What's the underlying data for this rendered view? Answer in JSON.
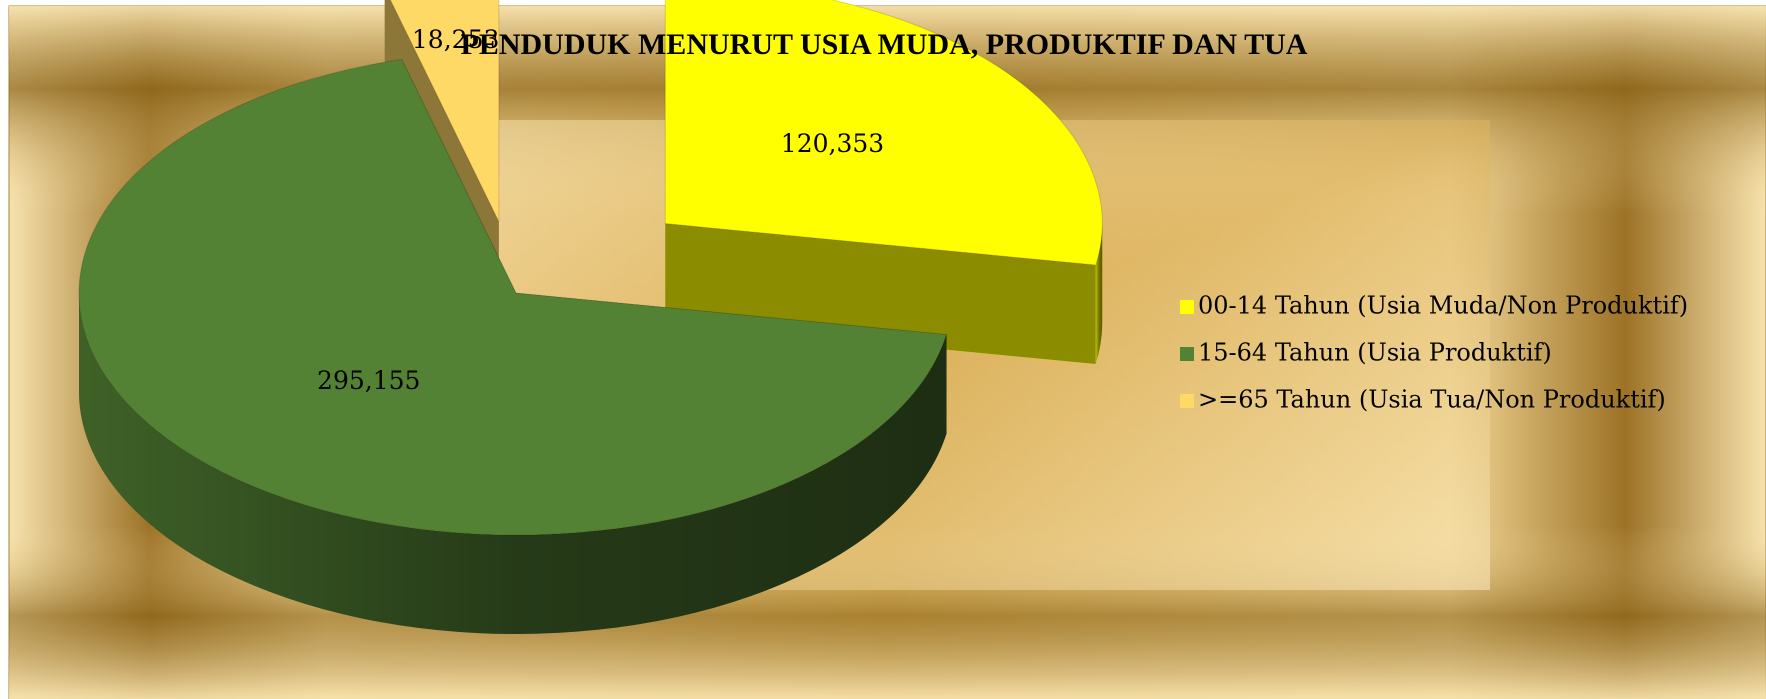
{
  "chart_data": {
    "type": "pie3d",
    "title": "PENDUDUK MENURUT USIA MUDA, PRODUKTIF DAN TUA",
    "categories": [
      "00-14 Tahun (Usia Muda/Non Produktif)",
      "15-64 Tahun (Usia Produktif)",
      ">=65 Tahun (Usia Tua/Non Produktif)"
    ],
    "values": [
      120353,
      295155,
      18253
    ],
    "value_labels": [
      "120,353",
      "295,155",
      "18,253"
    ],
    "colors": [
      "#ffff00",
      "#548235",
      "#ffd966"
    ],
    "legend": "right"
  }
}
